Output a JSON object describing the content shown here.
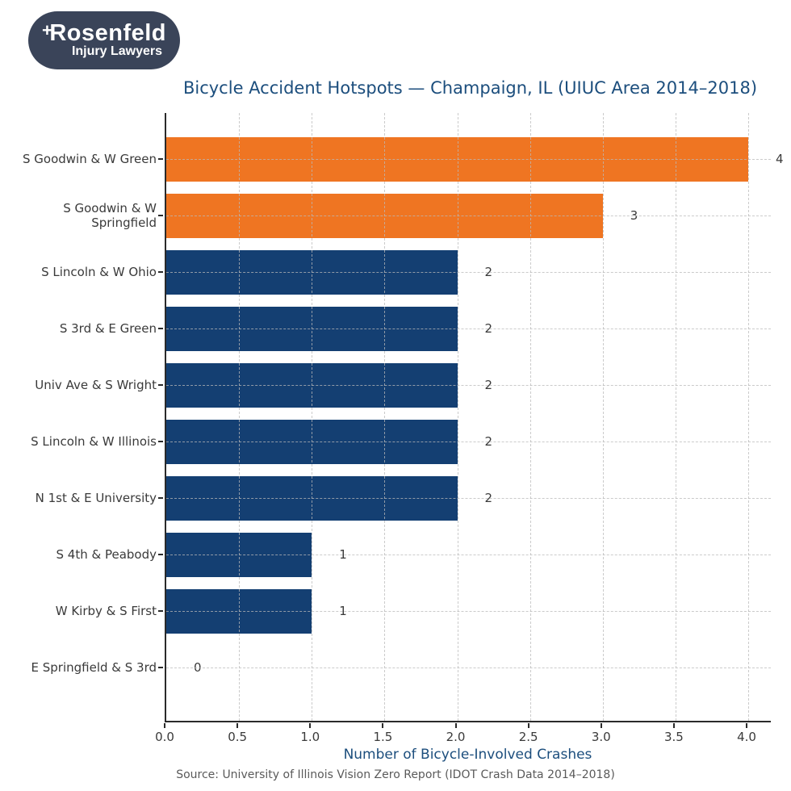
{
  "logo": {
    "line1": "Rosenfeld",
    "line2": "Injury Lawyers",
    "bg_color": "#3a4459",
    "text_color": "#ffffff"
  },
  "chart_data": {
    "type": "bar",
    "orientation": "horizontal",
    "title": "Bicycle Accident Hotspots — Champaign, IL (UIUC Area 2014–2018)",
    "xlabel": "Number of Bicycle-Involved Crashes",
    "source": "Source: University of Illinois Vision Zero Report (IDOT Crash Data 2014–2018)",
    "categories": [
      "S Goodwin & W Green",
      "S Goodwin & W Springfield",
      "S Lincoln & W Ohio",
      "S 3rd & E Green",
      "Univ Ave & S Wright",
      "S Lincoln & W Illinois",
      "N 1st & E University",
      "S 4th & Peabody",
      "W Kirby & S First",
      "E Springfield & S 3rd"
    ],
    "values": [
      4,
      3,
      2,
      2,
      2,
      2,
      2,
      1,
      1,
      0
    ],
    "bar_colors": [
      "#ef7522",
      "#ef7522",
      "#143f72",
      "#143f72",
      "#143f72",
      "#143f72",
      "#143f72",
      "#143f72",
      "#143f72",
      "#143f72"
    ],
    "highlight_color": "#ef7522",
    "base_color": "#143f72",
    "xticks": [
      0.0,
      0.5,
      1.0,
      1.5,
      2.0,
      2.5,
      3.0,
      3.5,
      4.0
    ],
    "xtick_labels": [
      "0.0",
      "0.5",
      "1.0",
      "1.5",
      "2.0",
      "2.5",
      "3.0",
      "3.5",
      "4.0"
    ],
    "xlim": [
      0,
      4.17
    ],
    "grid": "dashed, both axes, drawn over bars",
    "legend": "none",
    "title_color": "#1c4e7d",
    "xlabel_color": "#1c4e7d"
  }
}
